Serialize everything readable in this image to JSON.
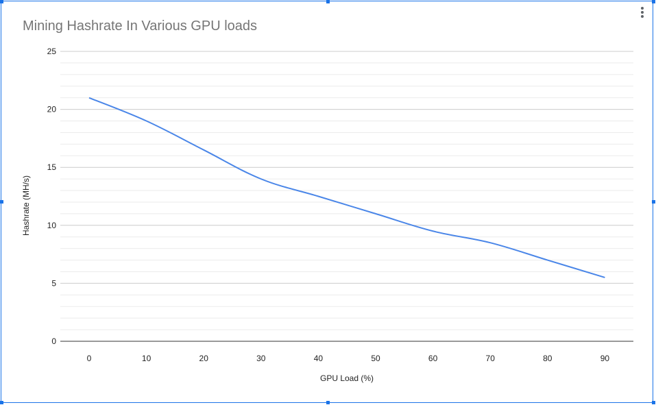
{
  "chart_data": {
    "type": "line",
    "title": "Mining Hashrate In Various GPU loads",
    "xlabel": "GPU Load (%)",
    "ylabel": "Hashrate (MH/s)",
    "x": [
      0,
      10,
      20,
      30,
      40,
      50,
      60,
      70,
      80,
      90
    ],
    "series": [
      {
        "values": [
          21,
          19,
          16.5,
          14,
          12.5,
          11,
          9.5,
          8.5,
          7,
          5.5
        ]
      }
    ],
    "ylim": [
      0,
      25
    ],
    "yticks": [
      "0",
      "5",
      "10",
      "15",
      "20",
      "25"
    ],
    "xticks": [
      "0",
      "10",
      "20",
      "30",
      "40",
      "50",
      "60",
      "70",
      "80",
      "90"
    ],
    "grid": true,
    "line_color": "#4a86e8"
  },
  "menu": {
    "icon": "more-vert-icon"
  }
}
